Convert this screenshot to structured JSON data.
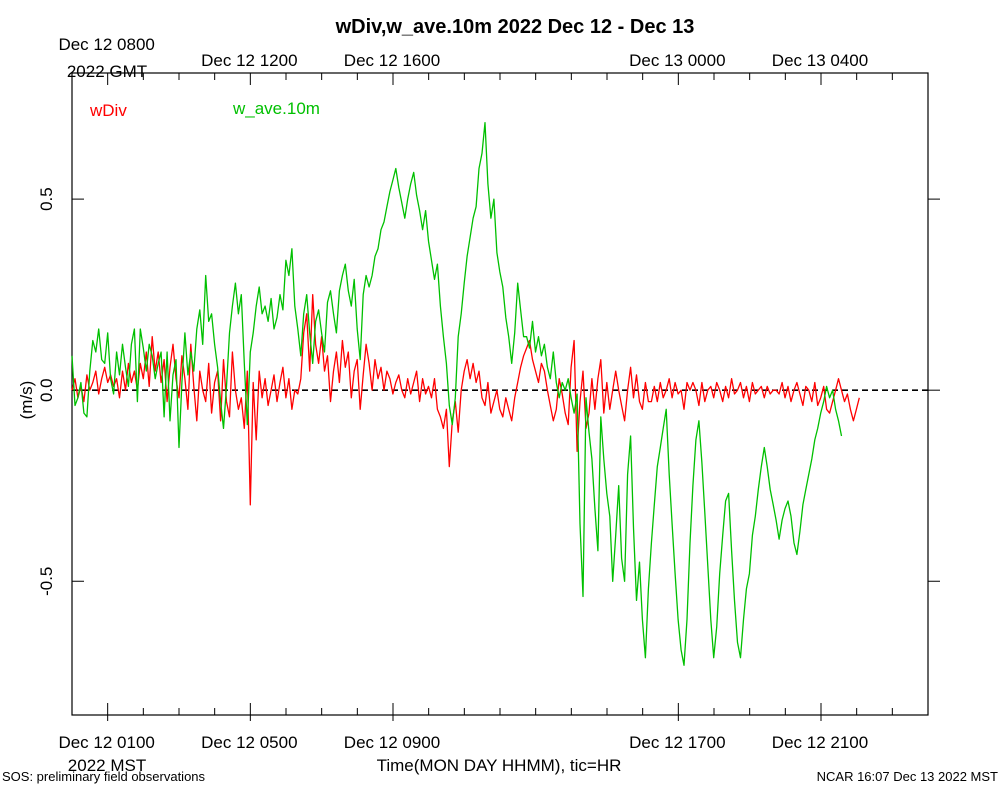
{
  "chart_data": {
    "type": "line",
    "title": "wDiv,w_ave.10m 2022 Dec 12 - Dec 13",
    "xlabel": "Time(MON DAY HHMM), tic=HR",
    "ylabel": "(m/s)",
    "ylim": [
      -0.85,
      0.83
    ],
    "xlim_hours": [
      0,
      24
    ],
    "zero_line": "dashed",
    "legend_position": "top-left",
    "bottom_axis": {
      "timezone_label": "2022 MST",
      "ticks": [
        {
          "hour": 1,
          "label": "Dec 12 0100"
        },
        {
          "hour": 5,
          "label": "Dec 12 0500"
        },
        {
          "hour": 9,
          "label": "Dec 12 0900"
        },
        {
          "hour": 17,
          "label": "Dec 12 1700"
        },
        {
          "hour": 21,
          "label": "Dec 12 2100"
        }
      ]
    },
    "top_axis": {
      "timezone_label": "2022 GMT",
      "ticks": [
        {
          "hour": 1,
          "label": "Dec 12 0800"
        },
        {
          "hour": 5,
          "label": "Dec 12 1200"
        },
        {
          "hour": 9,
          "label": "Dec 12 1600"
        },
        {
          "hour": 17,
          "label": "Dec 13 0000"
        },
        {
          "hour": 21,
          "label": "Dec 13 0400"
        }
      ]
    },
    "y_ticks": [
      -0.5,
      0.0,
      0.5
    ],
    "y_tick_labels": [
      "-0.5",
      "0.0",
      "0.5"
    ],
    "series": [
      {
        "name": "wDiv",
        "color": "#ff0000",
        "x_start_hour": 0.0,
        "x_step_hour": 0.0833,
        "values": [
          0.0,
          0.03,
          -0.02,
          0.01,
          -0.03,
          0.04,
          0.0,
          0.02,
          0.05,
          -0.01,
          0.03,
          0.06,
          0.02,
          0.04,
          0.01,
          0.03,
          -0.02,
          0.05,
          0.0,
          0.07,
          0.02,
          0.05,
          0.0,
          0.07,
          0.03,
          0.1,
          0.01,
          0.14,
          0.05,
          0.1,
          0.02,
          0.08,
          -0.03,
          0.06,
          0.12,
          0.03,
          -0.02,
          0.09,
          0.03,
          -0.05,
          0.12,
          0.01,
          -0.08,
          0.05,
          0.0,
          -0.03,
          0.07,
          -0.06,
          0.02,
          0.05,
          -0.08,
          0.08,
          -0.03,
          -0.07,
          0.1,
          0.0,
          -0.05,
          -0.02,
          -0.1,
          0.05,
          -0.3,
          0.02,
          -0.13,
          0.05,
          -0.02,
          0.03,
          -0.04,
          0.0,
          0.04,
          -0.03,
          0.02,
          0.06,
          -0.02,
          0.03,
          -0.05,
          0.0,
          -0.01,
          0.03,
          0.15,
          0.2,
          0.05,
          0.25,
          0.12,
          0.07,
          0.14,
          0.05,
          0.09,
          -0.03,
          0.05,
          0.1,
          0.02,
          0.13,
          0.06,
          0.1,
          -0.02,
          0.05,
          0.08,
          -0.05,
          0.04,
          0.12,
          0.07,
          0.0,
          0.08,
          0.03,
          0.06,
          0.0,
          0.05,
          0.03,
          -0.01,
          0.02,
          0.04,
          0.0,
          -0.02,
          0.03,
          -0.01,
          0.02,
          0.05,
          -0.03,
          0.03,
          -0.01,
          0.01,
          -0.02,
          0.03,
          -0.05,
          -0.07,
          -0.1,
          -0.05,
          -0.2,
          -0.08,
          -0.03,
          -0.11,
          0.0,
          0.05,
          0.08,
          0.03,
          0.07,
          0.02,
          0.05,
          -0.02,
          -0.04,
          0.02,
          -0.06,
          -0.03,
          0.0,
          -0.05,
          -0.07,
          -0.02,
          -0.05,
          -0.08,
          -0.02,
          0.02,
          0.06,
          0.09,
          0.11,
          0.13,
          0.08,
          0.05,
          0.02,
          0.07,
          0.05,
          0.0,
          -0.04,
          -0.08,
          -0.05,
          0.03,
          -0.01,
          -0.06,
          -0.09,
          0.06,
          0.13,
          -0.16,
          -0.03,
          0.05,
          -0.1,
          -0.06,
          0.03,
          -0.05,
          0.03,
          0.08,
          -0.06,
          0.02,
          -0.05,
          0.0,
          0.05,
          0.0,
          -0.04,
          -0.08,
          0.0,
          0.06,
          -0.02,
          0.04,
          -0.03,
          -0.05,
          0.02,
          -0.03,
          -0.03,
          0.01,
          -0.03,
          0.02,
          -0.02,
          0.0,
          0.03,
          -0.02,
          0.02,
          -0.01,
          0.0,
          -0.05,
          0.02,
          0.0,
          0.02,
          0.0,
          -0.04,
          0.02,
          -0.03,
          0.0,
          0.01,
          -0.02,
          0.02,
          0.0,
          -0.03,
          0.01,
          -0.02,
          0.03,
          -0.01,
          0.0,
          0.02,
          -0.02,
          0.01,
          -0.03,
          0.02,
          -0.01,
          0.0,
          0.01,
          -0.02,
          0.01,
          -0.01,
          0.0,
          0.0,
          -0.01,
          0.02,
          -0.02,
          0.01,
          -0.03,
          0.0,
          0.02,
          -0.01,
          -0.04,
          0.01,
          0.0,
          -0.03,
          0.02,
          -0.04,
          -0.02,
          0.01,
          -0.05,
          -0.06,
          -0.03,
          0.0,
          0.03,
          0.0,
          -0.03,
          -0.01,
          -0.05,
          -0.08,
          -0.05,
          -0.02
        ]
      },
      {
        "name": "w_ave.10m",
        "color": "#00c000",
        "x_start_hour": 0.0,
        "x_step_hour": 0.0833,
        "values": [
          0.09,
          -0.04,
          -0.02,
          0.02,
          -0.06,
          -0.07,
          0.05,
          0.13,
          0.1,
          0.16,
          0.08,
          0.07,
          0.15,
          0.03,
          -0.01,
          0.1,
          0.04,
          0.12,
          0.06,
          0.01,
          0.12,
          0.16,
          -0.03,
          0.16,
          0.11,
          0.05,
          0.12,
          0.09,
          0.03,
          0.07,
          0.1,
          -0.07,
          0.1,
          -0.08,
          0.04,
          0.08,
          -0.15,
          0.02,
          0.15,
          0.04,
          0.1,
          0.05,
          0.16,
          0.21,
          0.12,
          0.3,
          0.18,
          0.2,
          0.12,
          0.06,
          -0.03,
          -0.1,
          0.01,
          0.15,
          0.22,
          0.28,
          0.2,
          0.25,
          0.07,
          -0.09,
          0.1,
          0.15,
          0.22,
          0.27,
          0.2,
          0.22,
          0.18,
          0.24,
          0.16,
          0.19,
          0.25,
          0.21,
          0.34,
          0.3,
          0.37,
          0.22,
          0.16,
          0.09,
          0.2,
          0.25,
          0.15,
          0.07,
          0.18,
          0.21,
          0.15,
          0.1,
          0.23,
          0.26,
          0.2,
          0.15,
          0.26,
          0.3,
          0.33,
          0.26,
          0.22,
          0.29,
          0.16,
          0.08,
          0.25,
          0.3,
          0.27,
          0.3,
          0.35,
          0.37,
          0.42,
          0.44,
          0.48,
          0.52,
          0.55,
          0.58,
          0.53,
          0.49,
          0.45,
          0.5,
          0.54,
          0.57,
          0.51,
          0.47,
          0.42,
          0.47,
          0.39,
          0.34,
          0.29,
          0.33,
          0.22,
          0.14,
          0.07,
          -0.04,
          -0.09,
          -0.02,
          0.14,
          0.2,
          0.28,
          0.35,
          0.4,
          0.45,
          0.48,
          0.58,
          0.62,
          0.7,
          0.54,
          0.45,
          0.5,
          0.36,
          0.31,
          0.27,
          0.19,
          0.14,
          0.07,
          0.15,
          0.28,
          0.21,
          0.14,
          0.14,
          0.11,
          0.18,
          0.1,
          0.14,
          0.09,
          0.12,
          0.06,
          0.03,
          0.1,
          0.02,
          -0.02,
          0.02,
          0.0,
          0.03,
          -0.02,
          -0.06,
          -0.01,
          -0.35,
          -0.54,
          -0.02,
          -0.11,
          -0.18,
          -0.31,
          -0.42,
          -0.07,
          -0.18,
          -0.27,
          -0.33,
          -0.5,
          -0.38,
          -0.25,
          -0.44,
          -0.5,
          -0.22,
          -0.12,
          -0.36,
          -0.55,
          -0.45,
          -0.6,
          -0.7,
          -0.52,
          -0.4,
          -0.3,
          -0.2,
          -0.15,
          -0.1,
          -0.05,
          -0.22,
          -0.35,
          -0.48,
          -0.6,
          -0.68,
          -0.72,
          -0.6,
          -0.4,
          -0.25,
          -0.13,
          -0.08,
          -0.19,
          -0.32,
          -0.46,
          -0.6,
          -0.7,
          -0.62,
          -0.48,
          -0.38,
          -0.29,
          -0.27,
          -0.42,
          -0.55,
          -0.66,
          -0.7,
          -0.6,
          -0.52,
          -0.48,
          -0.38,
          -0.33,
          -0.26,
          -0.2,
          -0.15,
          -0.2,
          -0.26,
          -0.3,
          -0.34,
          -0.39,
          -0.34,
          -0.31,
          -0.29,
          -0.33,
          -0.4,
          -0.43,
          -0.37,
          -0.3,
          -0.26,
          -0.22,
          -0.18,
          -0.13,
          -0.1,
          -0.06,
          -0.03,
          0.01,
          -0.02,
          0.0,
          -0.05,
          -0.08,
          -0.12
        ]
      }
    ]
  },
  "footer": {
    "left": "SOS: preliminary field observations",
    "right": "NCAR 16:07 Dec 13 2022 MST"
  }
}
